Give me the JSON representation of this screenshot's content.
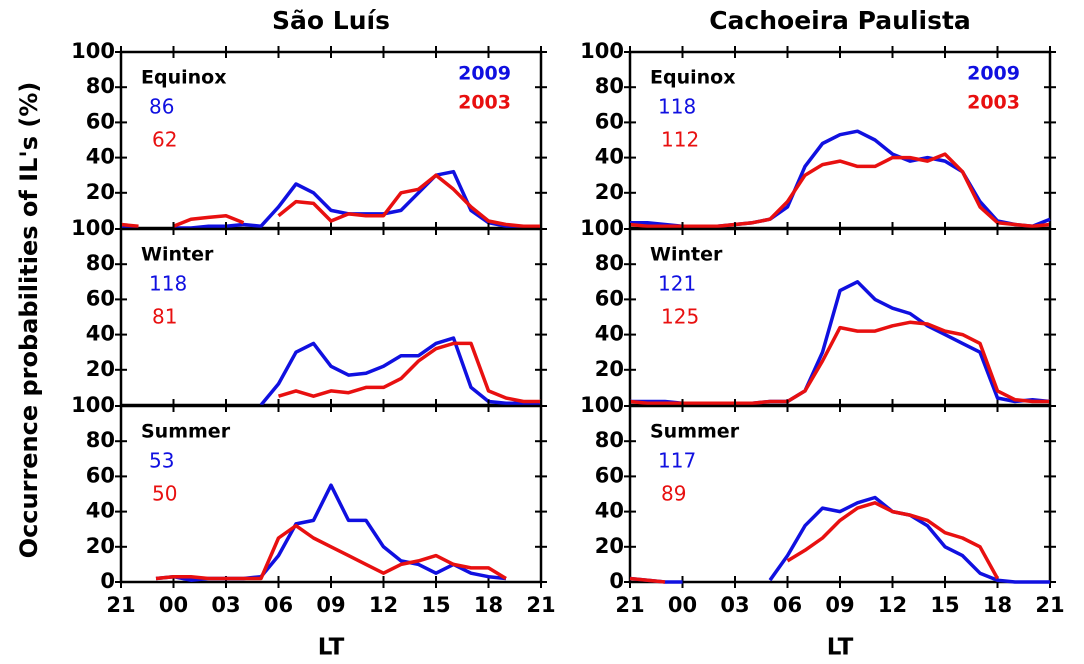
{
  "ylabel": "Occurrence probabilities of IL's (%)",
  "chart_data": [
    {
      "type": "line",
      "title": "São Luís",
      "label": "Equinox",
      "x": [
        0,
        1,
        2,
        3,
        4,
        5,
        6,
        7,
        8,
        9,
        10,
        11,
        12,
        13,
        14,
        15,
        16,
        17,
        18,
        19,
        20,
        21,
        22,
        23,
        24
      ],
      "xlim": [
        0,
        24
      ],
      "ylim": [
        0,
        100
      ],
      "yticks": [
        20,
        40,
        60,
        80,
        100
      ],
      "series": [
        {
          "name": "2009",
          "color": "#1010e0",
          "count": 86,
          "values": [
            1,
            1,
            null,
            0,
            0,
            1,
            1,
            2,
            1,
            12,
            25,
            20,
            10,
            8,
            8,
            8,
            10,
            20,
            30,
            32,
            10,
            3,
            1,
            1,
            1
          ]
        },
        {
          "name": "2003",
          "color": "#e81010",
          "count": 62,
          "values": [
            2,
            1,
            null,
            1,
            5,
            6,
            7,
            3,
            null,
            7,
            15,
            14,
            4,
            8,
            7,
            7,
            20,
            22,
            30,
            22,
            12,
            4,
            2,
            1,
            1
          ]
        }
      ]
    },
    {
      "type": "line",
      "label": "Winter",
      "x": [
        0,
        1,
        2,
        3,
        4,
        5,
        6,
        7,
        8,
        9,
        10,
        11,
        12,
        13,
        14,
        15,
        16,
        17,
        18,
        19,
        20,
        21,
        22,
        23,
        24
      ],
      "xlim": [
        0,
        24
      ],
      "ylim": [
        0,
        100
      ],
      "yticks": [
        20,
        40,
        60,
        80,
        100
      ],
      "series": [
        {
          "color": "#1010e0",
          "count": 118,
          "values": [
            null,
            null,
            null,
            null,
            null,
            null,
            null,
            null,
            0,
            12,
            30,
            35,
            22,
            17,
            18,
            22,
            28,
            28,
            35,
            38,
            10,
            2,
            1,
            1,
            0
          ]
        },
        {
          "color": "#e81010",
          "count": 81,
          "values": [
            null,
            null,
            null,
            null,
            null,
            null,
            null,
            null,
            null,
            5,
            8,
            5,
            8,
            7,
            10,
            10,
            15,
            25,
            32,
            35,
            35,
            8,
            4,
            2,
            2
          ]
        }
      ]
    },
    {
      "type": "line",
      "label": "Summer",
      "xlabel": "LT",
      "x": [
        0,
        1,
        2,
        3,
        4,
        5,
        6,
        7,
        8,
        9,
        10,
        11,
        12,
        13,
        14,
        15,
        16,
        17,
        18,
        19,
        20,
        21,
        22,
        23,
        24
      ],
      "xlim": [
        0,
        24
      ],
      "ylim": [
        0,
        100
      ],
      "yticks": [
        0,
        20,
        40,
        60,
        80,
        100
      ],
      "xticks": [
        {
          "value": 0,
          "label": "21"
        },
        {
          "value": 3,
          "label": "00"
        },
        {
          "value": 6,
          "label": "03"
        },
        {
          "value": 9,
          "label": "06"
        },
        {
          "value": 12,
          "label": "09"
        },
        {
          "value": 15,
          "label": "12"
        },
        {
          "value": 18,
          "label": "15"
        },
        {
          "value": 21,
          "label": "18"
        },
        {
          "value": 24,
          "label": "21"
        }
      ],
      "series": [
        {
          "color": "#1010e0",
          "count": 53,
          "values": [
            2,
            null,
            2,
            3,
            1,
            2,
            2,
            2,
            3,
            15,
            33,
            35,
            55,
            35,
            35,
            20,
            12,
            10,
            5,
            10,
            5,
            3,
            2,
            null,
            null
          ]
        },
        {
          "color": "#e81010",
          "count": 50,
          "values": [
            2,
            null,
            2,
            3,
            3,
            2,
            2,
            2,
            2,
            25,
            32,
            25,
            20,
            15,
            10,
            5,
            10,
            12,
            15,
            10,
            8,
            8,
            2,
            null,
            null
          ]
        }
      ]
    },
    {
      "type": "line",
      "title": "Cachoeira Paulista",
      "label": "Equinox",
      "x": [
        0,
        1,
        2,
        3,
        4,
        5,
        6,
        7,
        8,
        9,
        10,
        11,
        12,
        13,
        14,
        15,
        16,
        17,
        18,
        19,
        20,
        21,
        22,
        23,
        24
      ],
      "xlim": [
        0,
        24
      ],
      "ylim": [
        0,
        100
      ],
      "yticks": [
        20,
        40,
        60,
        80,
        100
      ],
      "series": [
        {
          "name": "2009",
          "color": "#1010e0",
          "count": 118,
          "values": [
            3,
            3,
            2,
            1,
            1,
            1,
            2,
            3,
            5,
            12,
            35,
            48,
            53,
            55,
            50,
            42,
            38,
            40,
            38,
            32,
            15,
            4,
            2,
            1,
            5
          ]
        },
        {
          "name": "2003",
          "color": "#e81010",
          "count": 112,
          "values": [
            2,
            1,
            1,
            1,
            1,
            1,
            2,
            3,
            5,
            15,
            30,
            36,
            38,
            35,
            35,
            40,
            40,
            38,
            42,
            32,
            12,
            3,
            2,
            1,
            2
          ]
        }
      ]
    },
    {
      "type": "line",
      "label": "Winter",
      "x": [
        0,
        1,
        2,
        3,
        4,
        5,
        6,
        7,
        8,
        9,
        10,
        11,
        12,
        13,
        14,
        15,
        16,
        17,
        18,
        19,
        20,
        21,
        22,
        23,
        24
      ],
      "xlim": [
        0,
        24
      ],
      "ylim": [
        0,
        100
      ],
      "yticks": [
        20,
        40,
        60,
        80,
        100
      ],
      "series": [
        {
          "color": "#1010e0",
          "count": 121,
          "values": [
            2,
            2,
            2,
            1,
            1,
            1,
            1,
            1,
            2,
            2,
            8,
            30,
            65,
            70,
            60,
            55,
            52,
            45,
            40,
            35,
            30,
            4,
            2,
            3,
            2
          ]
        },
        {
          "color": "#e81010",
          "count": 125,
          "values": [
            2,
            1,
            1,
            1,
            1,
            1,
            1,
            1,
            2,
            2,
            8,
            25,
            44,
            42,
            42,
            45,
            47,
            46,
            42,
            40,
            35,
            8,
            3,
            2,
            2
          ]
        }
      ]
    },
    {
      "type": "line",
      "label": "Summer",
      "xlabel": "LT",
      "x": [
        0,
        1,
        2,
        3,
        4,
        5,
        6,
        7,
        8,
        9,
        10,
        11,
        12,
        13,
        14,
        15,
        16,
        17,
        18,
        19,
        20,
        21,
        22,
        23,
        24
      ],
      "xlim": [
        0,
        24
      ],
      "ylim": [
        0,
        100
      ],
      "yticks": [
        0,
        20,
        40,
        60,
        80,
        100
      ],
      "xticks": [
        {
          "value": 0,
          "label": "21"
        },
        {
          "value": 3,
          "label": "00"
        },
        {
          "value": 6,
          "label": "03"
        },
        {
          "value": 9,
          "label": "06"
        },
        {
          "value": 12,
          "label": "09"
        },
        {
          "value": 15,
          "label": "12"
        },
        {
          "value": 18,
          "label": "15"
        },
        {
          "value": 21,
          "label": "18"
        },
        {
          "value": 24,
          "label": "21"
        }
      ],
      "series": [
        {
          "color": "#1010e0",
          "count": 117,
          "values": [
            2,
            1,
            0,
            0,
            null,
            null,
            null,
            null,
            1,
            15,
            32,
            42,
            40,
            45,
            48,
            40,
            38,
            32,
            20,
            15,
            5,
            1,
            0,
            0,
            0
          ]
        },
        {
          "color": "#e81010",
          "count": 89,
          "values": [
            2,
            1,
            0,
            null,
            null,
            null,
            null,
            null,
            null,
            12,
            18,
            25,
            35,
            42,
            45,
            40,
            38,
            35,
            28,
            25,
            20,
            2,
            null,
            null,
            null
          ]
        }
      ]
    }
  ]
}
